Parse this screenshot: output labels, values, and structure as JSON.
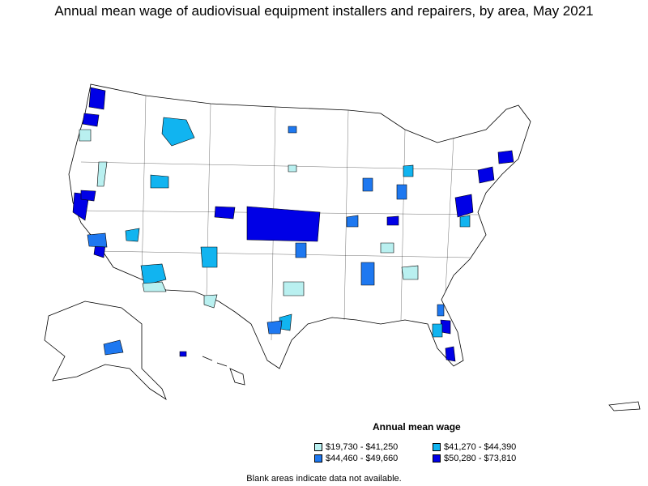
{
  "title": "Annual mean wage of audiovisual equipment installers and repairers, by area, May 2021",
  "legend": {
    "title": "Annual mean wage",
    "items": [
      {
        "label": "$19,730 - $41,250",
        "color": "#b9f0f0"
      },
      {
        "label": "$41,270 - $44,390",
        "color": "#11b4f0"
      },
      {
        "label": "$44,460 - $49,660",
        "color": "#1e78f0"
      },
      {
        "label": "$50,280 - $73,810",
        "color": "#0000e6"
      }
    ]
  },
  "note": "Blank areas indicate data not available.",
  "colors": {
    "border": "#000000",
    "blank": "#ffffff"
  }
}
